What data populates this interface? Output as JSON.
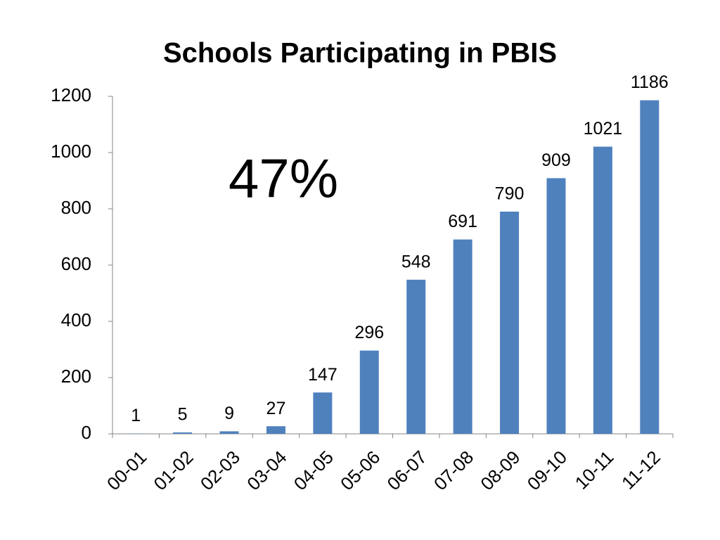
{
  "chart_data": {
    "type": "bar",
    "title": "Schools Participating in PBIS",
    "annotation": "47%",
    "categories": [
      "00-01",
      "01-02",
      "02-03",
      "03-04",
      "04-05",
      "05-06",
      "06-07",
      "07-08",
      "08-09",
      "09-10",
      "10-11",
      "11-12"
    ],
    "values": [
      1,
      5,
      9,
      27,
      147,
      296,
      548,
      691,
      790,
      909,
      1021,
      1186
    ],
    "color": "#4f81bd",
    "ylim": [
      0,
      1200
    ],
    "yticks": [
      0,
      200,
      400,
      600,
      800,
      1000,
      1200
    ],
    "grid": false
  }
}
